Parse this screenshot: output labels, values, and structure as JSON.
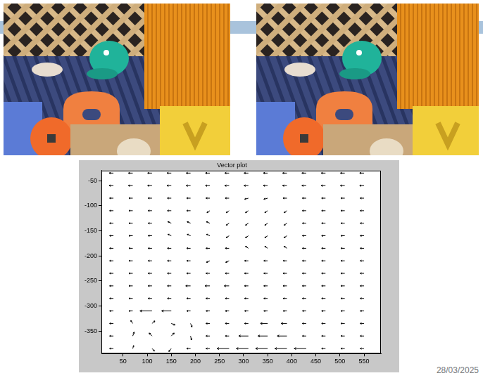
{
  "chart_data": {
    "type": "quiver",
    "title": "Vector plot",
    "date": "28/03/2025",
    "xlim": [
      5,
      585
    ],
    "ylim": [
      -395,
      -30
    ],
    "xticks": [
      50,
      100,
      150,
      200,
      250,
      300,
      350,
      400,
      450,
      500,
      550
    ],
    "yticks": [
      -350,
      -300,
      -250,
      -200,
      -150,
      -100,
      -50
    ],
    "grid": false,
    "color": "#000000",
    "x": [
      30,
      70,
      110,
      150,
      190,
      230,
      270,
      310,
      350,
      390,
      430,
      470,
      510,
      550
    ],
    "y": [
      -35,
      -60,
      -85,
      -110,
      -135,
      -160,
      -185,
      -210,
      -235,
      -260,
      -285,
      -310,
      -335,
      -360,
      -385
    ],
    "u": [
      [
        -9,
        -9,
        -9,
        -9,
        -9,
        -9,
        -9,
        -9,
        -9,
        -9,
        -9,
        -9,
        -9,
        -9
      ],
      [
        -9,
        -9,
        -9,
        -9,
        -9,
        -9,
        -9,
        -9,
        -9,
        -9,
        -9,
        -9,
        -9,
        -9
      ],
      [
        -8,
        -8,
        -8,
        -8,
        -8,
        -8,
        -8,
        -8,
        -8,
        -8,
        -8,
        -8,
        -8,
        -8
      ],
      [
        -8,
        -8,
        -8,
        -8,
        -8,
        -6,
        -6,
        -6,
        -6,
        -6,
        -8,
        -8,
        -8,
        -8
      ],
      [
        -8,
        -8,
        -8,
        -7,
        -7,
        -7,
        -6,
        -6,
        -6,
        -6,
        -8,
        -8,
        -8,
        -8
      ],
      [
        -8,
        -8,
        -8,
        -7,
        -7,
        -7,
        -6,
        -6,
        -6,
        -6,
        -8,
        -8,
        -8,
        -8
      ],
      [
        -8,
        -8,
        -8,
        -8,
        -8,
        -8,
        -8,
        -6,
        -6,
        -6,
        -8,
        -8,
        -8,
        -8
      ],
      [
        -8,
        -8,
        -8,
        -8,
        -8,
        -7,
        -7,
        -8,
        -8,
        -8,
        -8,
        -8,
        -8,
        -8
      ],
      [
        -8,
        -8,
        -8,
        -8,
        -8,
        -8,
        -8,
        -8,
        -8,
        -8,
        -8,
        -8,
        -8,
        -8
      ],
      [
        -8,
        -8,
        -8,
        -8,
        -10,
        -10,
        -10,
        -8,
        -8,
        -8,
        -8,
        -8,
        -8,
        -8
      ],
      [
        -8,
        -8,
        -8,
        -8,
        -8,
        -8,
        -8,
        -8,
        -8,
        -8,
        -8,
        -8,
        -8,
        -8
      ],
      [
        -8,
        -8,
        -25,
        -20,
        -8,
        -8,
        -8,
        -8,
        -8,
        -8,
        -8,
        -8,
        -8,
        -8
      ],
      [
        -8,
        -4,
        6,
        8,
        3,
        -8,
        -8,
        -8,
        -15,
        -12,
        -8,
        -8,
        -8,
        -8
      ],
      [
        -8,
        3,
        -6,
        6,
        2,
        -8,
        -8,
        -20,
        -20,
        -20,
        -8,
        -8,
        -8,
        -8
      ],
      [
        -8,
        2,
        5,
        -5,
        -8,
        -8,
        -25,
        -25,
        -25,
        -25,
        -25,
        -8,
        -8,
        -8
      ]
    ],
    "v": [
      [
        0,
        0,
        0,
        0,
        0,
        0,
        0,
        0,
        0,
        0,
        0,
        0,
        0,
        0
      ],
      [
        0,
        0,
        0,
        0,
        0,
        0,
        0,
        0,
        0,
        0,
        0,
        0,
        0,
        0
      ],
      [
        0,
        0,
        0,
        0,
        0,
        0,
        0,
        -2,
        -2,
        0,
        0,
        0,
        0,
        0
      ],
      [
        0,
        0,
        0,
        0,
        0,
        -4,
        -4,
        -4,
        -4,
        -4,
        0,
        0,
        0,
        0
      ],
      [
        0,
        0,
        0,
        3,
        3,
        3,
        -4,
        -4,
        -4,
        -4,
        0,
        0,
        0,
        0
      ],
      [
        0,
        0,
        0,
        3,
        3,
        3,
        -4,
        -4,
        -4,
        -4,
        0,
        0,
        0,
        0
      ],
      [
        0,
        0,
        0,
        0,
        0,
        0,
        0,
        4,
        4,
        4,
        0,
        0,
        0,
        0
      ],
      [
        0,
        0,
        0,
        0,
        0,
        -3,
        -3,
        0,
        0,
        0,
        0,
        0,
        0,
        0
      ],
      [
        0,
        0,
        0,
        0,
        0,
        0,
        0,
        0,
        0,
        0,
        0,
        0,
        0,
        0
      ],
      [
        0,
        0,
        0,
        0,
        0,
        0,
        0,
        0,
        0,
        0,
        0,
        0,
        0,
        0
      ],
      [
        0,
        0,
        0,
        0,
        0,
        0,
        0,
        0,
        0,
        0,
        0,
        0,
        0,
        0
      ],
      [
        0,
        0,
        0,
        0,
        0,
        0,
        0,
        0,
        0,
        0,
        0,
        0,
        0,
        0
      ],
      [
        0,
        6,
        5,
        -3,
        -7,
        0,
        0,
        0,
        0,
        0,
        0,
        0,
        0,
        0
      ],
      [
        0,
        8,
        6,
        6,
        -8,
        0,
        0,
        0,
        0,
        0,
        0,
        0,
        0,
        0
      ],
      [
        0,
        6,
        -5,
        -6,
        0,
        0,
        0,
        0,
        0,
        0,
        0,
        0,
        0,
        0
      ]
    ]
  }
}
